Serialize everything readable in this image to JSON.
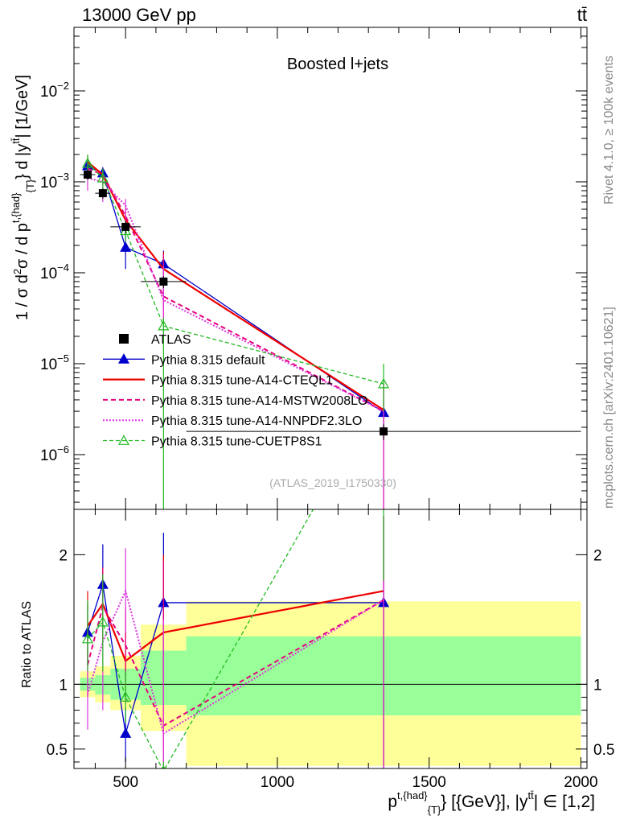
{
  "header": {
    "left": "13000 GeV pp",
    "right": "tt̄"
  },
  "side_labels": {
    "rivet": "Rivet 4.1.0, ≥ 100k events",
    "mcplots": "mcplots.cern.ch [arXiv:2401.10621]"
  },
  "chart_data": [
    {
      "type": "line",
      "title": "Boosted l+jets",
      "watermark": "(ATLAS_2019_I1750330)",
      "ylabel": "1 / σ d²σ / d p^{t,{had}}_{T} d |y^{tt̄}| [1/GeV]",
      "ylabel_parts": {
        "main": "1 / σ d",
        "sup1": "2",
        "mid": "σ / d p",
        "sup2": "t,{had}",
        "sub": "{T}",
        "tail": "} d |y",
        "sup3": "tt̄",
        "end": "| [1/GeV]"
      },
      "yscale": "log",
      "ylim": [
        2.5e-07,
        0.05
      ],
      "xlim": [
        330,
        2020
      ],
      "yticks": [
        {
          "v": 1e-06,
          "label": "10",
          "exp": "−6"
        },
        {
          "v": 1e-05,
          "label": "10",
          "exp": "−5"
        },
        {
          "v": 0.0001,
          "label": "10",
          "exp": "−4"
        },
        {
          "v": 0.001,
          "label": "10",
          "exp": "−3"
        },
        {
          "v": 0.01,
          "label": "10",
          "exp": "−2"
        }
      ],
      "legend_position": "center-left",
      "legend": [
        {
          "name": "ATLAS",
          "style": "data"
        },
        {
          "name": "Pythia 8.315 default",
          "style": "blue"
        },
        {
          "name": "Pythia 8.315 tune-A14-CTEQL1",
          "style": "red"
        },
        {
          "name": "Pythia 8.315 tune-A14-MSTW2008LO",
          "style": "magenta"
        },
        {
          "name": "Pythia 8.315 tune-A14-NNPDF2.3LO",
          "style": "pink"
        },
        {
          "name": "Pythia 8.315 tune-CUETP8S1",
          "style": "green"
        }
      ],
      "data": {
        "x": [
          375,
          425,
          500,
          625,
          1350
        ],
        "xerr": [
          25,
          25,
          50,
          75,
          650
        ],
        "y": [
          0.0012,
          0.00075,
          0.00032,
          8e-05,
          1.8e-06
        ],
        "yerr": [
          0.00015,
          0.0001,
          5e-05,
          1.2e-05,
          3.5e-07
        ]
      },
      "series": [
        {
          "key": "blue",
          "x": [
            375,
            425,
            500,
            625,
            1350
          ],
          "y": [
            0.0015,
            0.00125,
            0.00019,
            0.000125,
            2.9e-06
          ],
          "ylo": [
            0.00125,
            0.00105,
            0.00011,
            8e-05,
            2e-06
          ],
          "yhi": [
            0.0018,
            0.00145,
            0.00026,
            0.000175,
            4e-06
          ]
        },
        {
          "key": "red",
          "x": [
            375,
            425,
            500,
            625,
            1350
          ],
          "y": [
            0.00165,
            0.0012,
            0.00038,
            0.00011,
            3.1e-06
          ],
          "ylo": [
            0.0014,
            0.001,
            0.00026,
            4e-05,
            1e-07
          ],
          "yhi": [
            0.00195,
            0.0014,
            0.0005,
            0.00017,
            6e-06
          ]
        },
        {
          "key": "magenta",
          "x": [
            375,
            425,
            500,
            625,
            1350
          ],
          "y": [
            0.0014,
            0.0012,
            0.00042,
            5.5e-05,
            3e-06
          ],
          "ylo": [
            0.0011,
            0.00095,
            0.0003,
            3e-05,
            1e-07
          ],
          "yhi": [
            0.0017,
            0.0014,
            0.00054,
            0.00016,
            6e-06
          ]
        },
        {
          "key": "pink",
          "x": [
            375,
            425,
            500,
            625,
            1350
          ],
          "y": [
            0.0011,
            0.001,
            0.00055,
            5e-05,
            3e-06
          ],
          "ylo": [
            0.0008,
            0.0006,
            0.0004,
            2e-05,
            1e-07
          ],
          "yhi": [
            0.0014,
            0.0013,
            0.00065,
            0.00012,
            6e-06
          ]
        },
        {
          "key": "green",
          "x": [
            375,
            425,
            500,
            625,
            1350
          ],
          "y": [
            0.0016,
            0.0011,
            0.00029,
            2.6e-05,
            6e-06
          ],
          "ylo": [
            0.0013,
            0.0008,
            0.00022,
            1e-07,
            3e-06
          ],
          "yhi": [
            0.002,
            0.0014,
            0.00036,
            3.2e-05,
            1e-05
          ]
        }
      ]
    },
    {
      "type": "line",
      "ylabel": "Ratio to ATLAS",
      "xlabel": "p^{t,{had}}_{T} [{GeV}], |y^{tt̄}| ∈ [1,2]",
      "xlabel_parts": {
        "main": "p",
        "sup1": "t,{had}",
        "sub": "{T}",
        "mid": "} [{GeV}], |y",
        "sup2": "tt̄",
        "end": "| ∈ [1,2]"
      },
      "ylim": [
        0.35,
        2.35
      ],
      "xlim": [
        330,
        2020
      ],
      "xticks": [
        500,
        1000,
        1500,
        2000
      ],
      "yticks": [
        {
          "v": 0.5,
          "label": "0.5"
        },
        {
          "v": 1,
          "label": "1"
        },
        {
          "v": 2,
          "label": "2"
        }
      ],
      "bands": {
        "x_edges": [
          350,
          400,
          450,
          550,
          700,
          2000
        ],
        "green_lo": [
          0.95,
          0.92,
          0.88,
          0.84,
          0.76
        ],
        "green_hi": [
          1.05,
          1.07,
          1.12,
          1.26,
          1.37
        ],
        "yellow_lo": [
          0.9,
          0.86,
          0.8,
          0.64,
          0.37
        ],
        "yellow_hi": [
          1.1,
          1.14,
          1.22,
          1.46,
          1.64
        ]
      },
      "series": [
        {
          "key": "blue",
          "x": [
            375,
            425,
            500,
            625,
            1350
          ],
          "y": [
            1.4,
            1.77,
            0.62,
            1.63,
            1.63
          ],
          "ylo": [
            1.15,
            1.5,
            0.4,
            1.05,
            0.3
          ],
          "yhi": [
            1.62,
            2.08,
            0.82,
            2.17,
            2.3
          ]
        },
        {
          "key": "red",
          "x": [
            375,
            425,
            500,
            625,
            1350
          ],
          "y": [
            1.45,
            1.62,
            1.18,
            1.4,
            1.72
          ],
          "ylo": [
            1.2,
            1.35,
            0.85,
            0.5,
            0.3
          ],
          "yhi": [
            1.72,
            1.9,
            1.55,
            2.0,
            2.3
          ]
        },
        {
          "key": "magenta",
          "x": [
            375,
            425,
            500,
            625,
            1350
          ],
          "y": [
            1.15,
            1.6,
            1.3,
            0.68,
            1.65
          ],
          "ylo": [
            0.9,
            1.3,
            1.0,
            0.35,
            0.3
          ],
          "yhi": [
            1.4,
            1.9,
            1.6,
            1.95,
            2.3
          ]
        },
        {
          "key": "pink",
          "x": [
            375,
            425,
            500,
            625,
            1350
          ],
          "y": [
            0.92,
            1.33,
            1.72,
            0.62,
            1.65
          ],
          "ylo": [
            0.65,
            0.8,
            1.4,
            0.35,
            0.3
          ],
          "yhi": [
            1.2,
            1.8,
            2.05,
            1.5,
            2.3
          ]
        },
        {
          "key": "green",
          "x": [
            375,
            425,
            500,
            625,
            1350
          ],
          "y": [
            1.35,
            1.48,
            0.9,
            0.33,
            3.3
          ],
          "ylo": [
            1.1,
            1.1,
            0.7,
            0.1,
            1.8
          ],
          "yhi": [
            1.65,
            1.85,
            1.1,
            0.4,
            5.0
          ]
        }
      ]
    }
  ]
}
